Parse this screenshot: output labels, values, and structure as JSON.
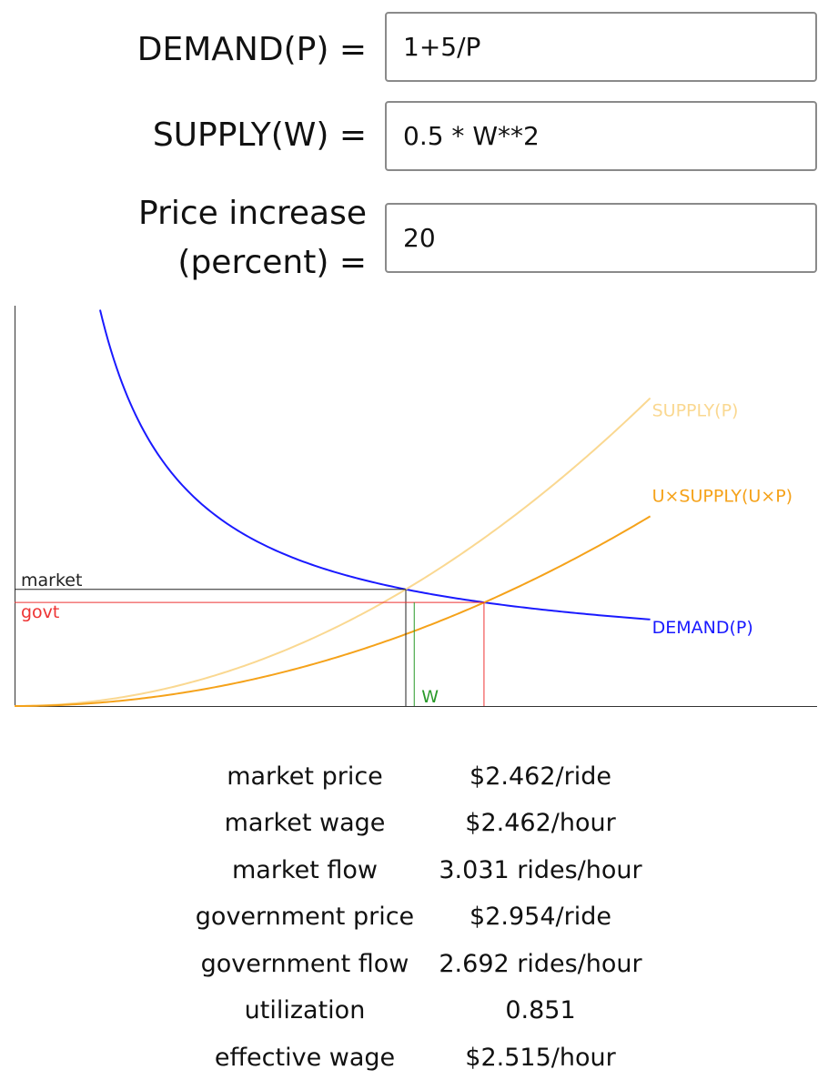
{
  "form": {
    "demand": {
      "label": "DEMAND(P) =",
      "value": "1+5/P"
    },
    "supply": {
      "label": "SUPPLY(W) =",
      "value": "0.5 * W**2"
    },
    "price_increase": {
      "label_line1": "Price increase",
      "label_line2": "(percent) =",
      "value": "20"
    }
  },
  "chart_data": {
    "type": "line",
    "series": [
      {
        "name": "DEMAND(P)",
        "color": "#1a1aff",
        "formula": "1+5/P"
      },
      {
        "name": "SUPPLY(P)",
        "color": "#fad891",
        "formula": "0.5*P**2"
      },
      {
        "name": "U×SUPPLY(U×P)",
        "color": "#f5a21a",
        "formula": "U*0.5*(U*P)**2"
      }
    ],
    "markers": {
      "market_label": "market",
      "govt_label": "govt",
      "wage_label": "W",
      "market_color": "#222222",
      "govt_color": "#ee3333",
      "wage_color": "#2a9a2a"
    },
    "market_price": 2.462,
    "market_flow": 3.031,
    "government_price": 2.954,
    "government_flow": 2.692,
    "utilization": 0.851,
    "effective_wage": 2.515,
    "xlim": [
      0,
      5.05
    ],
    "ylim": [
      0,
      10.4
    ],
    "grid": false
  },
  "results": [
    {
      "label": "market price",
      "value": "$2.462/ride"
    },
    {
      "label": "market wage",
      "value": "$2.462/hour"
    },
    {
      "label": "market flow",
      "value": "3.031 rides/hour"
    },
    {
      "label": "government price",
      "value": "$2.954/ride"
    },
    {
      "label": "government flow",
      "value": "2.692 rides/hour"
    },
    {
      "label": "utilization",
      "value": "0.851"
    },
    {
      "label": "effective wage",
      "value": "$2.515/hour"
    }
  ]
}
